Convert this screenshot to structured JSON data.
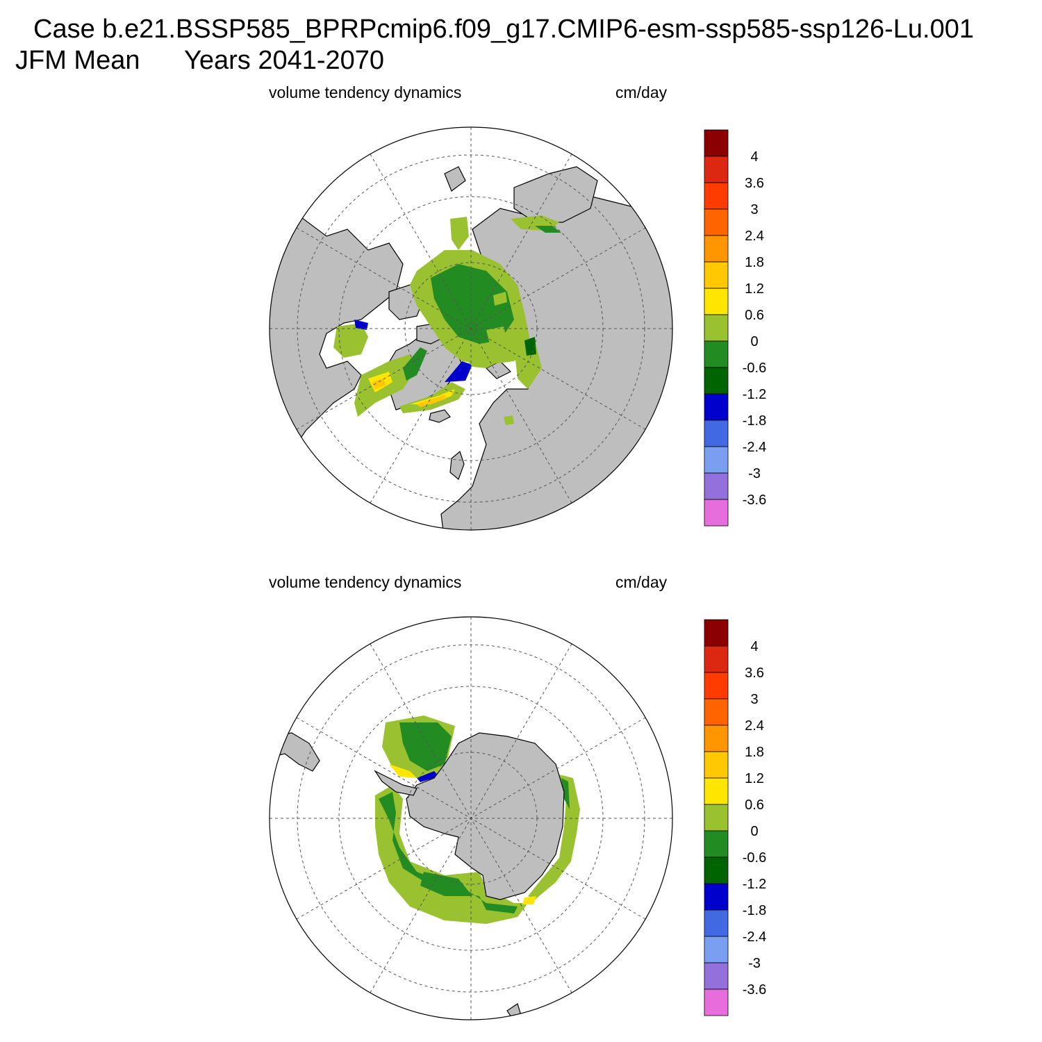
{
  "header": {
    "case_line": "Case b.e21.BSSP585_BPRPcmip6.f09_g17.CMIP6-esm-ssp585-ssp126-Lu.001",
    "season": "JFM Mean",
    "years": "Years 2041-2070"
  },
  "panels": [
    {
      "id": "north",
      "hemisphere": "Northern Hemisphere polar stereographic",
      "field_label": "volume tendency dynamics",
      "units_label": "cm/day"
    },
    {
      "id": "south",
      "hemisphere": "Southern Hemisphere polar stereographic",
      "field_label": "volume tendency dynamics",
      "units_label": "cm/day"
    }
  ],
  "colorbar": {
    "levels": [
      "4",
      "3.6",
      "3",
      "2.4",
      "1.8",
      "1.2",
      "0.6",
      "0",
      "-0.6",
      "-1.2",
      "-1.8",
      "-2.4",
      "-3",
      "-3.6"
    ],
    "colors": [
      "#8b0000",
      "#dc2810",
      "#ff3c00",
      "#ff6400",
      "#ff9600",
      "#ffc800",
      "#ffe600",
      "#9ac130",
      "#228b22",
      "#006400",
      "#0000cd",
      "#4169e1",
      "#7b9ff0",
      "#9370db",
      "#e56ddc"
    ]
  },
  "map_colors": {
    "land": "#bebebe",
    "ocean": "#ffffff",
    "grid": "#555555"
  }
}
